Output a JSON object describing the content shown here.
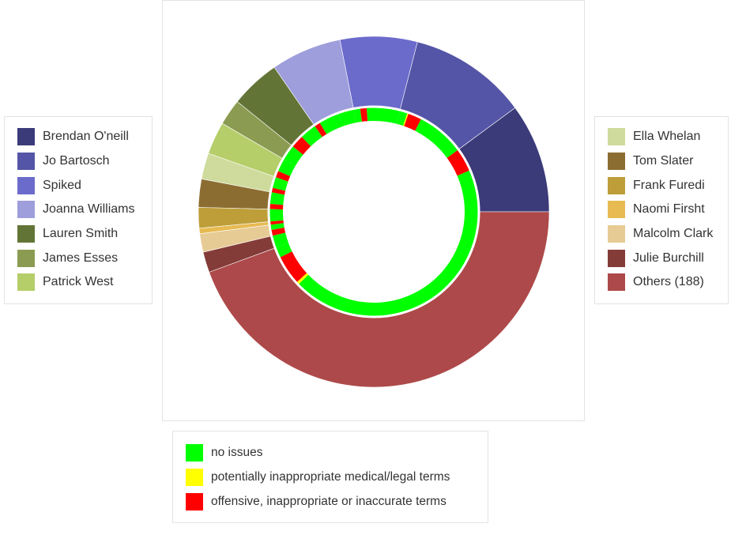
{
  "chart_data": {
    "type": "donut",
    "title": "",
    "outer_ring": {
      "unit": "share of total (%)",
      "series": [
        {
          "name": "Brendan O'neill",
          "value": 10.1,
          "color": "#3b3b7a"
        },
        {
          "name": "Jo Bartosch",
          "value": 10.9,
          "color": "#5455a6"
        },
        {
          "name": "Spiked",
          "value": 7.1,
          "color": "#6b6bcc"
        },
        {
          "name": "Joanna Williams",
          "value": 6.5,
          "color": "#9e9edc"
        },
        {
          "name": "Lauren Smith",
          "value": 4.6,
          "color": "#637536"
        },
        {
          "name": "James Esses",
          "value": 2.4,
          "color": "#8b9c52"
        },
        {
          "name": "Patrick West",
          "value": 3.0,
          "color": "#b5ce6a"
        },
        {
          "name": "Ella Whelan",
          "value": 2.4,
          "color": "#cedb9c"
        },
        {
          "name": "Tom Slater",
          "value": 2.6,
          "color": "#8c6d31"
        },
        {
          "name": "Frank Furedi",
          "value": 1.9,
          "color": "#bd9e39"
        },
        {
          "name": "Naomi Firsht",
          "value": 0.5,
          "color": "#e7ba52"
        },
        {
          "name": "Malcolm Clark",
          "value": 1.7,
          "color": "#e7cb94"
        },
        {
          "name": "Julie Burchill",
          "value": 1.9,
          "color": "#843c39"
        },
        {
          "name": "Others (188)",
          "value": 44.4,
          "color": "#ad494a"
        }
      ]
    },
    "inner_ring": {
      "categories": [
        "no issues",
        "potentially inappropriate medical/legal terms",
        "offensive, inappropriate or inaccurate terms"
      ],
      "colors": {
        "no issues": "#00ff00",
        "potentially inappropriate medical/legal terms": "#ffff00",
        "offensive, inappropriate or inaccurate terms": "#ff0000"
      },
      "segments": [
        {
          "author": "Brendan O'neill",
          "parts": [
            {
              "issue": "no issues",
              "value": 6.5
            },
            {
              "issue": "offensive, inappropriate or inaccurate terms",
              "value": 3.6
            }
          ]
        },
        {
          "author": "Jo Bartosch",
          "parts": [
            {
              "issue": "no issues",
              "value": 7.4
            },
            {
              "issue": "offensive, inappropriate or inaccurate terms",
              "value": 2.1
            },
            {
              "issue": "potentially inappropriate medical/legal terms",
              "value": 0.2
            },
            {
              "issue": "no issues",
              "value": 1.2
            }
          ]
        },
        {
          "author": "Spiked",
          "parts": [
            {
              "issue": "no issues",
              "value": 5.1
            },
            {
              "issue": "offensive, inappropriate or inaccurate terms",
              "value": 1.0
            },
            {
              "issue": "no issues",
              "value": 1.0
            }
          ]
        },
        {
          "author": "Joanna Williams",
          "parts": [
            {
              "issue": "no issues",
              "value": 5.6
            },
            {
              "issue": "offensive, inappropriate or inaccurate terms",
              "value": 0.9
            }
          ]
        },
        {
          "author": "Lauren Smith",
          "parts": [
            {
              "issue": "no issues",
              "value": 2.6
            },
            {
              "issue": "offensive, inappropriate or inaccurate terms",
              "value": 2.0
            }
          ]
        },
        {
          "author": "James Esses",
          "parts": [
            {
              "issue": "no issues",
              "value": 2.4
            }
          ]
        },
        {
          "author": "Patrick West",
          "parts": [
            {
              "issue": "no issues",
              "value": 2.0
            },
            {
              "issue": "offensive, inappropriate or inaccurate terms",
              "value": 1.0
            }
          ]
        },
        {
          "author": "Ella Whelan",
          "parts": [
            {
              "issue": "no issues",
              "value": 1.7
            },
            {
              "issue": "offensive, inappropriate or inaccurate terms",
              "value": 0.7
            }
          ]
        },
        {
          "author": "Tom Slater",
          "parts": [
            {
              "issue": "no issues",
              "value": 1.8
            },
            {
              "issue": "offensive, inappropriate or inaccurate terms",
              "value": 0.8
            }
          ]
        },
        {
          "author": "Frank Furedi",
          "parts": [
            {
              "issue": "no issues",
              "value": 1.9
            }
          ]
        },
        {
          "author": "Naomi Firsht",
          "parts": [
            {
              "issue": "offensive, inappropriate or inaccurate terms",
              "value": 0.5
            }
          ]
        },
        {
          "author": "Malcolm Clark",
          "parts": [
            {
              "issue": "no issues",
              "value": 0.8
            },
            {
              "issue": "offensive, inappropriate or inaccurate terms",
              "value": 0.9
            }
          ]
        },
        {
          "author": "Julie Burchill",
          "parts": [
            {
              "issue": "no issues",
              "value": 1.9
            }
          ]
        },
        {
          "author": "Others (188)",
          "parts": [
            {
              "issue": "no issues",
              "value": 1.6
            },
            {
              "issue": "offensive, inappropriate or inaccurate terms",
              "value": 4.6
            },
            {
              "issue": "potentially inappropriate medical/legal terms",
              "value": 0.4
            },
            {
              "issue": "no issues",
              "value": 37.8
            }
          ]
        }
      ]
    }
  },
  "legend_left": [
    "Brendan O'neill",
    "Jo Bartosch",
    "Spiked",
    "Joanna Williams",
    "Lauren Smith",
    "James Esses",
    "Patrick West"
  ],
  "legend_right": [
    "Ella Whelan",
    "Tom Slater",
    "Frank Furedi",
    "Naomi Firsht",
    "Malcolm Clark",
    "Julie Burchill",
    "Others (188)"
  ],
  "legend_issues": [
    "no issues",
    "potentially inappropriate medical/legal terms",
    "offensive, inappropriate or inaccurate terms"
  ]
}
